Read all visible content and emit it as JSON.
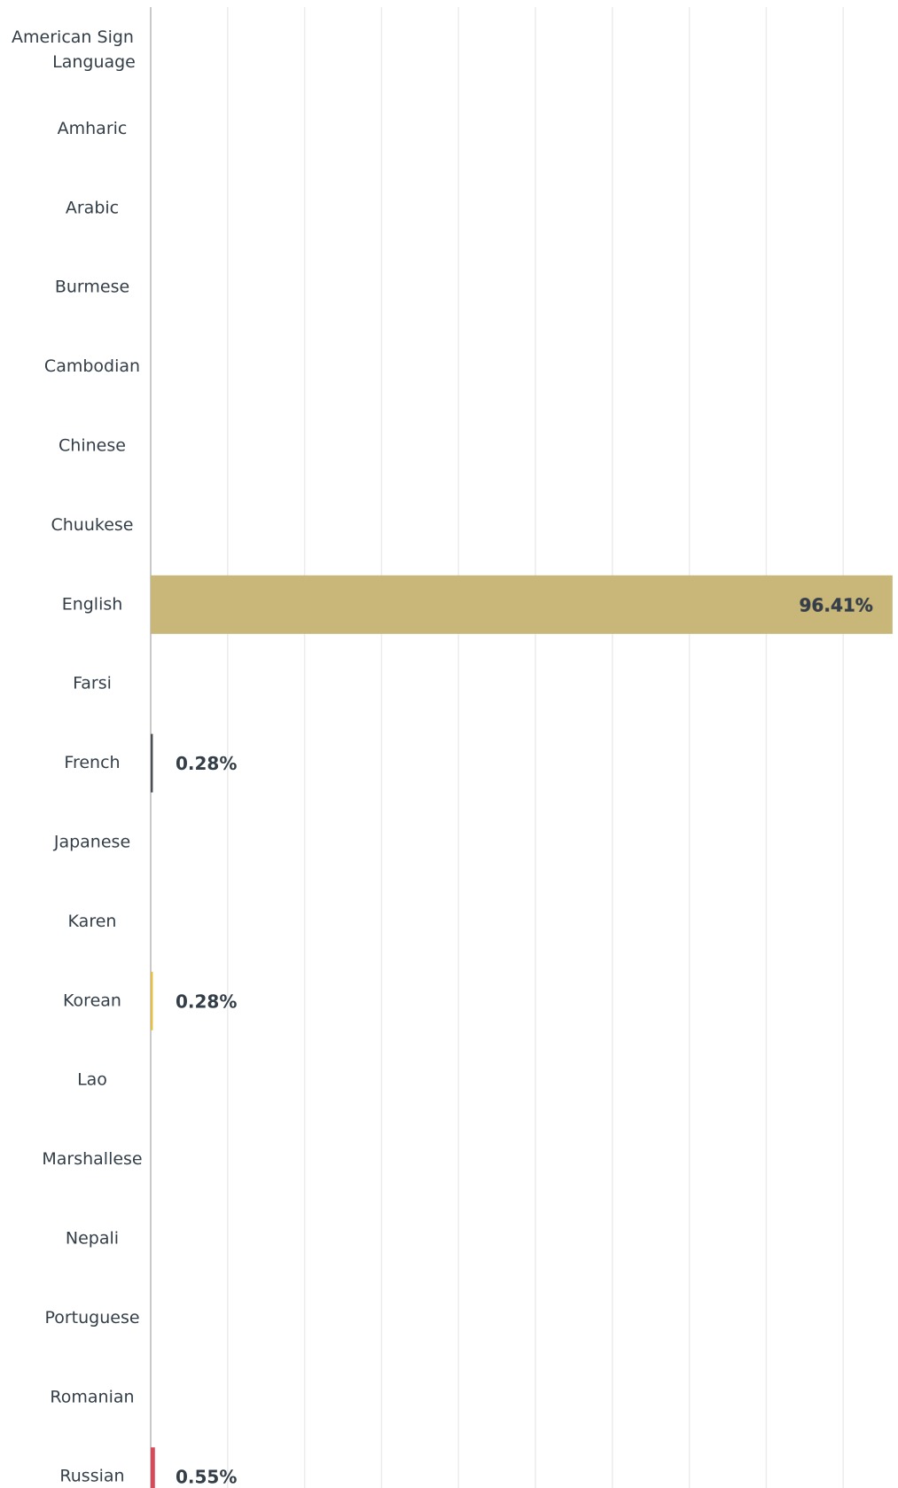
{
  "chart_data": {
    "type": "hbar",
    "categories": [
      "American Sign Language",
      "Amharic",
      "Arabic",
      "Burmese",
      "Cambodian",
      "Chinese",
      "Chuukese",
      "English",
      "Farsi",
      "French",
      "Japanese",
      "Karen",
      "Korean",
      "Lao",
      "Marshallese",
      "Nepali",
      "Portuguese",
      "Romanian",
      "Russian"
    ],
    "values": [
      0,
      0,
      0,
      0,
      0,
      0,
      0,
      96.41,
      0,
      0.28,
      0,
      0,
      0.28,
      0,
      0,
      0,
      0,
      0,
      0.55
    ],
    "value_labels": [
      null,
      null,
      null,
      null,
      null,
      null,
      null,
      "96.41%",
      null,
      "0.28%",
      null,
      null,
      "0.28%",
      null,
      null,
      null,
      null,
      null,
      "0.55%"
    ],
    "colors": [
      "#c8b778",
      "#c8b778",
      "#c8b778",
      "#c8b778",
      "#c8b778",
      "#c8b778",
      "#c8b778",
      "#c8b778",
      "#c8b778",
      "#4a4f55",
      "#c8b778",
      "#c8b778",
      "#e6bf45",
      "#c8b778",
      "#c8b778",
      "#c8b778",
      "#c8b778",
      "#c8b778",
      "#d64a5c"
    ],
    "xlim": [
      0,
      100
    ],
    "xticks": [
      0,
      10,
      20,
      30,
      40,
      50,
      60,
      70,
      80,
      90
    ],
    "grid": true
  }
}
